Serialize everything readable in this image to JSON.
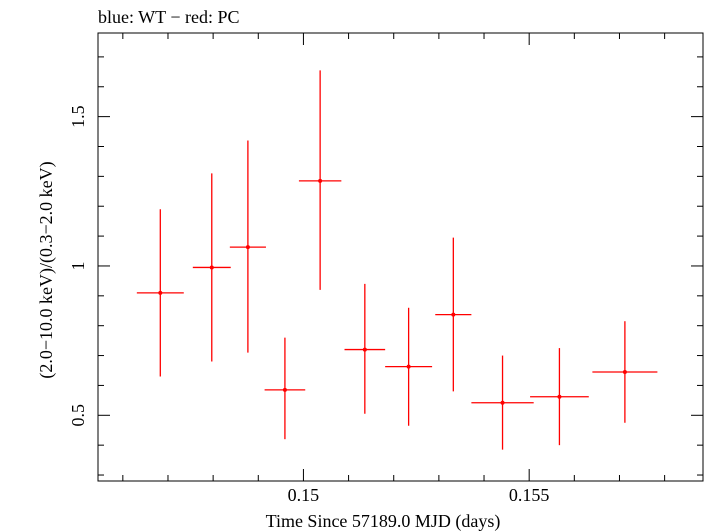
{
  "chart_data": {
    "type": "scatter",
    "title": "blue: WT − red: PC",
    "xlabel": "Time Since 57189.0 MJD (days)",
    "ylabel": "(2.0−10.0 keV)/(0.3−2.0 keV)",
    "xlim": [
      0.14545,
      0.15885
    ],
    "ylim": [
      0.28,
      1.78
    ],
    "xticks": [
      0.15,
      0.155
    ],
    "xtick_labels": [
      "0.15",
      "0.155"
    ],
    "yticks": [
      0.5,
      1,
      1.5
    ],
    "ytick_labels": [
      "0.5",
      "1",
      "1.5"
    ],
    "grid": false,
    "series": [
      {
        "color": "#ff0000",
        "points": [
          {
            "x": 0.14683,
            "y": 0.91,
            "xerr": 0.00052,
            "ylo": 0.63,
            "yhi": 1.19
          },
          {
            "x": 0.14797,
            "y": 0.995,
            "xerr": 0.00042,
            "ylo": 0.68,
            "yhi": 1.31
          },
          {
            "x": 0.14877,
            "y": 1.063,
            "xerr": 0.0004,
            "ylo": 0.71,
            "yhi": 1.42
          },
          {
            "x": 0.14959,
            "y": 0.585,
            "xerr": 0.00045,
            "ylo": 0.42,
            "yhi": 0.76
          },
          {
            "x": 0.15037,
            "y": 1.285,
            "xerr": 0.00047,
            "ylo": 0.92,
            "yhi": 1.655
          },
          {
            "x": 0.15136,
            "y": 0.72,
            "xerr": 0.00045,
            "ylo": 0.505,
            "yhi": 0.94
          },
          {
            "x": 0.15233,
            "y": 0.663,
            "xerr": 0.00052,
            "ylo": 0.465,
            "yhi": 0.86
          },
          {
            "x": 0.15332,
            "y": 0.837,
            "xerr": 0.0004,
            "ylo": 0.58,
            "yhi": 1.095
          },
          {
            "x": 0.15441,
            "y": 0.542,
            "xerr": 0.00069,
            "ylo": 0.385,
            "yhi": 0.7
          },
          {
            "x": 0.15567,
            "y": 0.562,
            "xerr": 0.00065,
            "ylo": 0.4,
            "yhi": 0.725
          },
          {
            "x": 0.15712,
            "y": 0.645,
            "xerr": 0.00072,
            "ylo": 0.475,
            "yhi": 0.815
          }
        ]
      }
    ]
  }
}
